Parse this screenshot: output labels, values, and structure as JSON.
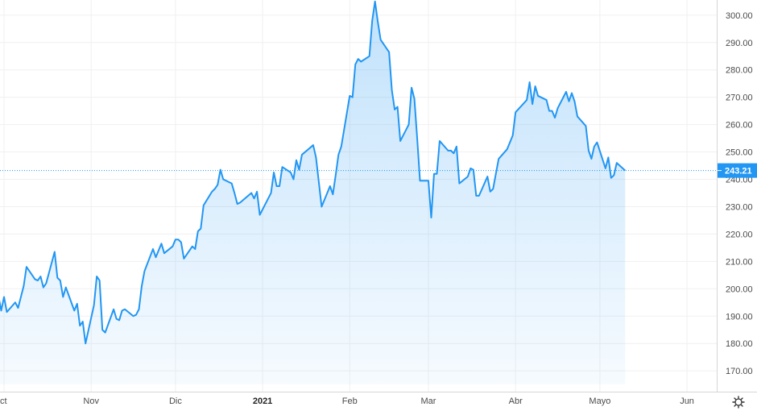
{
  "chart_data": {
    "type": "area",
    "title": "",
    "xlabel": "",
    "ylabel": "",
    "ylim": [
      165,
      307
    ],
    "grid": true,
    "y_ticks": [
      170,
      180,
      190,
      200,
      210,
      220,
      230,
      240,
      250,
      260,
      270,
      280,
      290,
      300
    ],
    "y_tick_labels": [
      "170.00",
      "180.00",
      "190.00",
      "200.00",
      "210.00",
      "220.00",
      "230.00",
      "240.00",
      "250.00",
      "260.00",
      "270.00",
      "280.00",
      "290.00",
      "300.00"
    ],
    "x_tick_labels": [
      {
        "label": "ct",
        "date": "2020-10-01",
        "bold": false
      },
      {
        "label": "Nov",
        "date": "2020-11-01",
        "bold": false
      },
      {
        "label": "Dic",
        "date": "2020-12-01",
        "bold": false
      },
      {
        "label": "2021",
        "date": "2021-01-01",
        "bold": true
      },
      {
        "label": "Feb",
        "date": "2021-02-01",
        "bold": false
      },
      {
        "label": "Mar",
        "date": "2021-03-01",
        "bold": false
      },
      {
        "label": "Abr",
        "date": "2021-04-01",
        "bold": false
      },
      {
        "label": "Mayo",
        "date": "2021-05-01",
        "bold": false
      },
      {
        "label": "Jun",
        "date": "2021-06-01",
        "bold": false
      }
    ],
    "last_price": 243.21,
    "last_price_label": "243.21",
    "series": [
      {
        "color": "#2196f3",
        "fill_color": "#2196f3",
        "points": [
          [
            "2020-09-29",
            197.5
          ],
          [
            "2020-09-30",
            192.0
          ],
          [
            "2020-10-01",
            197.0
          ],
          [
            "2020-10-02",
            191.5
          ],
          [
            "2020-10-05",
            195.0
          ],
          [
            "2020-10-06",
            193.0
          ],
          [
            "2020-10-07",
            197.0
          ],
          [
            "2020-10-08",
            201.0
          ],
          [
            "2020-10-09",
            208.0
          ],
          [
            "2020-10-12",
            203.5
          ],
          [
            "2020-10-13",
            203.0
          ],
          [
            "2020-10-14",
            204.5
          ],
          [
            "2020-10-15",
            200.5
          ],
          [
            "2020-10-16",
            202.0
          ],
          [
            "2020-10-19",
            213.5
          ],
          [
            "2020-10-20",
            204.0
          ],
          [
            "2020-10-21",
            203.0
          ],
          [
            "2020-10-22",
            197.0
          ],
          [
            "2020-10-23",
            200.5
          ],
          [
            "2020-10-26",
            192.0
          ],
          [
            "2020-10-27",
            194.5
          ],
          [
            "2020-10-28",
            186.5
          ],
          [
            "2020-10-29",
            188.0
          ],
          [
            "2020-10-30",
            180.0
          ],
          [
            "2020-11-02",
            194.0
          ],
          [
            "2020-11-03",
            204.5
          ],
          [
            "2020-11-04",
            203.0
          ],
          [
            "2020-11-05",
            185.0
          ],
          [
            "2020-11-06",
            184.0
          ],
          [
            "2020-11-09",
            192.5
          ],
          [
            "2020-11-10",
            189.0
          ],
          [
            "2020-11-11",
            188.5
          ],
          [
            "2020-11-12",
            192.0
          ],
          [
            "2020-11-13",
            192.5
          ],
          [
            "2020-11-16",
            190.0
          ],
          [
            "2020-11-17",
            190.5
          ],
          [
            "2020-11-18",
            192.5
          ],
          [
            "2020-11-19",
            201.0
          ],
          [
            "2020-11-20",
            206.5
          ],
          [
            "2020-11-23",
            214.5
          ],
          [
            "2020-11-24",
            211.5
          ],
          [
            "2020-11-25",
            214.0
          ],
          [
            "2020-11-26",
            216.5
          ],
          [
            "2020-11-27",
            213.0
          ],
          [
            "2020-11-30",
            215.5
          ],
          [
            "2020-12-01",
            218.0
          ],
          [
            "2020-12-02",
            218.0
          ],
          [
            "2020-12-03",
            217.0
          ],
          [
            "2020-12-04",
            211.0
          ],
          [
            "2020-12-07",
            215.5
          ],
          [
            "2020-12-08",
            214.5
          ],
          [
            "2020-12-09",
            221.0
          ],
          [
            "2020-12-10",
            222.0
          ],
          [
            "2020-12-11",
            230.5
          ],
          [
            "2020-12-14",
            235.5
          ],
          [
            "2020-12-15",
            236.5
          ],
          [
            "2020-12-16",
            238.0
          ],
          [
            "2020-12-17",
            243.5
          ],
          [
            "2020-12-18",
            240.0
          ],
          [
            "2020-12-21",
            238.5
          ],
          [
            "2020-12-22",
            235.0
          ],
          [
            "2020-12-23",
            231.0
          ],
          [
            "2020-12-24",
            231.5
          ],
          [
            "2020-12-28",
            235.0
          ],
          [
            "2020-12-29",
            233.0
          ],
          [
            "2020-12-30",
            235.5
          ],
          [
            "2020-12-31",
            227.0
          ],
          [
            "2021-01-04",
            235.0
          ],
          [
            "2021-01-05",
            242.5
          ],
          [
            "2021-01-06",
            237.5
          ],
          [
            "2021-01-07",
            237.5
          ],
          [
            "2021-01-08",
            244.5
          ],
          [
            "2021-01-11",
            242.5
          ],
          [
            "2021-01-12",
            240.0
          ],
          [
            "2021-01-13",
            247.0
          ],
          [
            "2021-01-14",
            243.5
          ],
          [
            "2021-01-15",
            249.0
          ],
          [
            "2021-01-19",
            252.5
          ],
          [
            "2021-01-20",
            248.0
          ],
          [
            "2021-01-21",
            239.0
          ],
          [
            "2021-01-22",
            230.0
          ],
          [
            "2021-01-25",
            237.5
          ],
          [
            "2021-01-26",
            234.5
          ],
          [
            "2021-01-27",
            241.5
          ],
          [
            "2021-01-28",
            249.0
          ],
          [
            "2021-01-29",
            252.0
          ],
          [
            "2021-02-01",
            270.5
          ],
          [
            "2021-02-02",
            270.0
          ],
          [
            "2021-02-03",
            282.0
          ],
          [
            "2021-02-04",
            284.0
          ],
          [
            "2021-02-05",
            283.0
          ],
          [
            "2021-02-08",
            285.0
          ],
          [
            "2021-02-09",
            298.0
          ],
          [
            "2021-02-10",
            305.0
          ],
          [
            "2021-02-11",
            297.5
          ],
          [
            "2021-02-12",
            291.0
          ],
          [
            "2021-02-15",
            286.5
          ],
          [
            "2021-02-16",
            272.5
          ],
          [
            "2021-02-17",
            265.5
          ],
          [
            "2021-02-18",
            266.5
          ],
          [
            "2021-02-19",
            254.0
          ],
          [
            "2021-02-22",
            260.0
          ],
          [
            "2021-02-23",
            273.5
          ],
          [
            "2021-02-24",
            269.5
          ],
          [
            "2021-02-25",
            255.0
          ],
          [
            "2021-02-26",
            239.5
          ],
          [
            "2021-03-01",
            239.5
          ],
          [
            "2021-03-02",
            226.0
          ],
          [
            "2021-03-03",
            242.0
          ],
          [
            "2021-03-04",
            242.0
          ],
          [
            "2021-03-05",
            254.0
          ],
          [
            "2021-03-08",
            250.5
          ],
          [
            "2021-03-09",
            250.5
          ],
          [
            "2021-03-10",
            249.5
          ],
          [
            "2021-03-11",
            252.0
          ],
          [
            "2021-03-12",
            238.5
          ],
          [
            "2021-03-15",
            241.0
          ],
          [
            "2021-03-16",
            244.0
          ],
          [
            "2021-03-17",
            243.5
          ],
          [
            "2021-03-18",
            234.0
          ],
          [
            "2021-03-19",
            234.0
          ],
          [
            "2021-03-22",
            241.0
          ],
          [
            "2021-03-23",
            235.5
          ],
          [
            "2021-03-24",
            236.5
          ],
          [
            "2021-03-25",
            242.0
          ],
          [
            "2021-03-26",
            247.5
          ],
          [
            "2021-03-29",
            251.0
          ],
          [
            "2021-03-30",
            253.5
          ],
          [
            "2021-03-31",
            256.0
          ],
          [
            "2021-04-01",
            264.5
          ],
          [
            "2021-04-05",
            269.0
          ],
          [
            "2021-04-06",
            275.5
          ],
          [
            "2021-04-07",
            267.5
          ],
          [
            "2021-04-08",
            274.0
          ],
          [
            "2021-04-09",
            270.5
          ],
          [
            "2021-04-12",
            269.0
          ],
          [
            "2021-04-13",
            265.0
          ],
          [
            "2021-04-14",
            265.0
          ],
          [
            "2021-04-15",
            262.5
          ],
          [
            "2021-04-16",
            266.0
          ],
          [
            "2021-04-19",
            272.0
          ],
          [
            "2021-04-20",
            268.5
          ],
          [
            "2021-04-21",
            271.5
          ],
          [
            "2021-04-22",
            268.5
          ],
          [
            "2021-04-23",
            263.0
          ],
          [
            "2021-04-26",
            259.5
          ],
          [
            "2021-04-27",
            250.5
          ],
          [
            "2021-04-28",
            247.5
          ],
          [
            "2021-04-29",
            252.0
          ],
          [
            "2021-04-30",
            253.5
          ],
          [
            "2021-05-03",
            244.0
          ],
          [
            "2021-05-04",
            248.0
          ],
          [
            "2021-05-05",
            240.5
          ],
          [
            "2021-05-06",
            241.5
          ],
          [
            "2021-05-07",
            246.0
          ],
          [
            "2021-05-10",
            243.21
          ]
        ]
      }
    ]
  },
  "ui": {
    "settings_icon": "gear-icon",
    "price_badge_color": "#2196f3",
    "line_color": "#2196f3"
  }
}
